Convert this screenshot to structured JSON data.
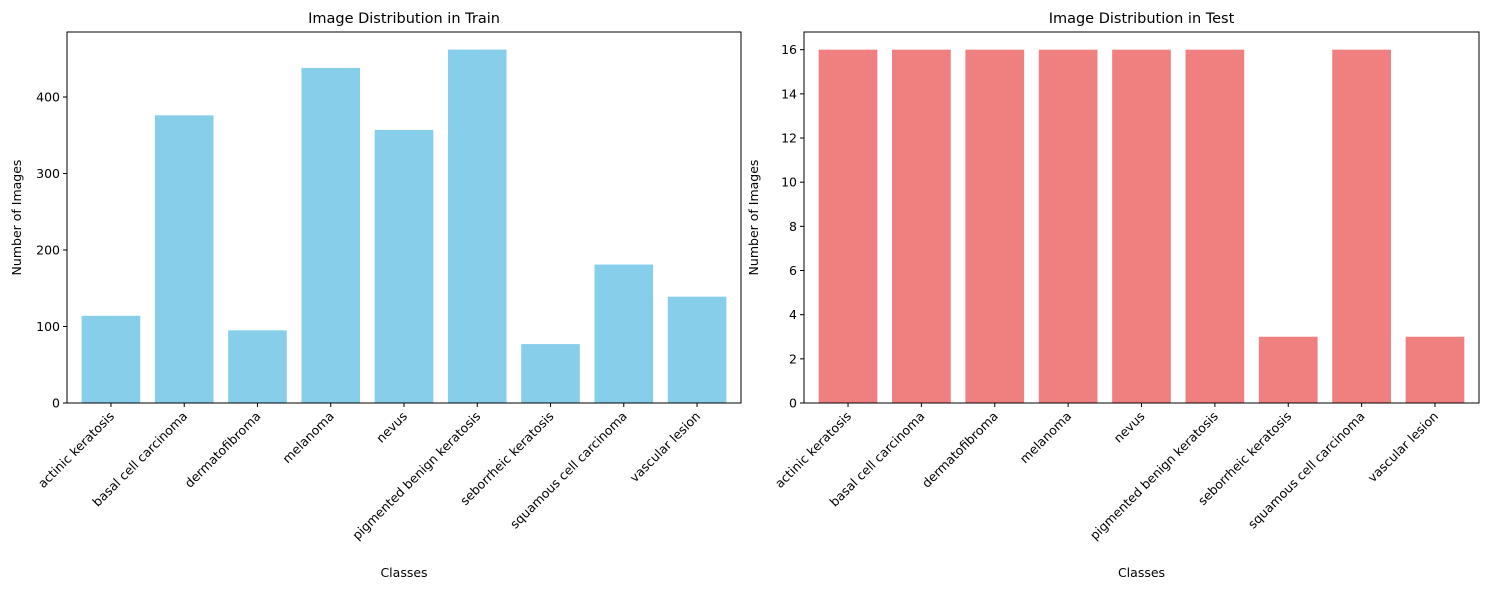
{
  "chart_data": [
    {
      "type": "bar",
      "title": "Image Distribution in Train",
      "xlabel": "Classes",
      "ylabel": "Number of Images",
      "categories": [
        "actinic keratosis",
        "basal cell carcinoma",
        "dermatofibroma",
        "melanoma",
        "nevus",
        "pigmented benign keratosis",
        "seborrheic keratosis",
        "squamous cell carcinoma",
        "vascular lesion"
      ],
      "values": [
        114,
        376,
        95,
        438,
        357,
        462,
        77,
        181,
        139
      ],
      "ylim": [
        0,
        485
      ],
      "yticks": [
        0,
        100,
        200,
        300,
        400
      ],
      "color": "#87ceeb",
      "grid": false
    },
    {
      "type": "bar",
      "title": "Image Distribution in Test",
      "xlabel": "Classes",
      "ylabel": "Number of Images",
      "categories": [
        "actinic keratosis",
        "basal cell carcinoma",
        "dermatofibroma",
        "melanoma",
        "nevus",
        "pigmented benign keratosis",
        "seborrheic keratosis",
        "squamous cell carcinoma",
        "vascular lesion"
      ],
      "values": [
        16,
        16,
        16,
        16,
        16,
        16,
        3,
        16,
        3
      ],
      "ylim": [
        0,
        16.8
      ],
      "yticks": [
        0,
        2,
        4,
        6,
        8,
        10,
        12,
        14,
        16
      ],
      "color": "#f08080",
      "grid": false
    }
  ]
}
